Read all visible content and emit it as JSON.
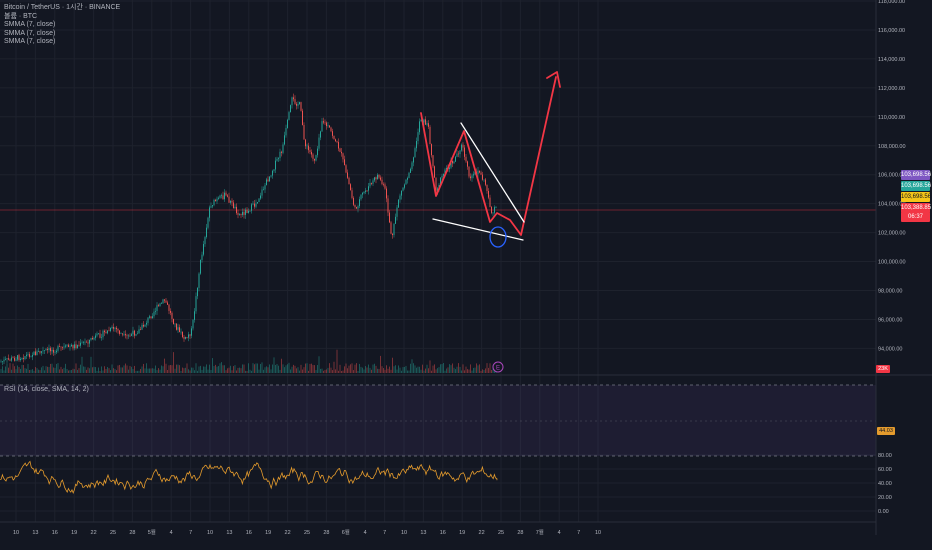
{
  "legend": {
    "symbol": "Bitcoin / TetherUS · 1시간 · BINANCE",
    "volume": "볼륨 · BTC",
    "smma1": "SMMA (7, close)",
    "smma2": "SMMA (7, close)",
    "smma3": "SMMA (7, close)"
  },
  "rsi_label": "RSI (14, close, SMA, 14, 2)",
  "price_axis": [
    "118,000.00",
    "116,000.00",
    "114,000.00",
    "112,000.00",
    "110,000.00",
    "108,000.00",
    "106,000.00",
    "104,000.00",
    "102,000.00",
    "100,000.00",
    "98,000.00",
    "96,000.00",
    "94,000.00"
  ],
  "rsi_axis": [
    "80.00",
    "60.00",
    "40.00",
    "20.00",
    "0.00"
  ],
  "time_axis": [
    "10",
    "13",
    "16",
    "19",
    "22",
    "25",
    "28",
    "5월",
    "4",
    "7",
    "10",
    "13",
    "16",
    "19",
    "22",
    "25",
    "28",
    "6월",
    "4",
    "7",
    "10",
    "13",
    "16",
    "19",
    "22",
    "25",
    "28",
    "7월",
    "4",
    "7",
    "10"
  ],
  "badges": {
    "smma_a": "103,698.56",
    "smma_b": "103,698.56",
    "smma_c": "103,698.56",
    "price": "103,388.85",
    "countdown": "06:37",
    "vol": "23K",
    "rsi": "44.03"
  },
  "colors": {
    "background": "#131722",
    "up": "#26a69a",
    "down": "#ef5350",
    "drawing_red": "#f23645",
    "drawing_white": "#ffffff",
    "circle_blue": "#2962ff",
    "rsi_line": "#e49b2d",
    "rsi_band": "#7e57c2",
    "smma_purple": "#7e57c2",
    "smma_teal": "#26a69a",
    "smma_yellow": "#f5c518"
  },
  "icons": {
    "event_marker": "dividend-e-icon"
  },
  "event_marker_letter": "E"
}
